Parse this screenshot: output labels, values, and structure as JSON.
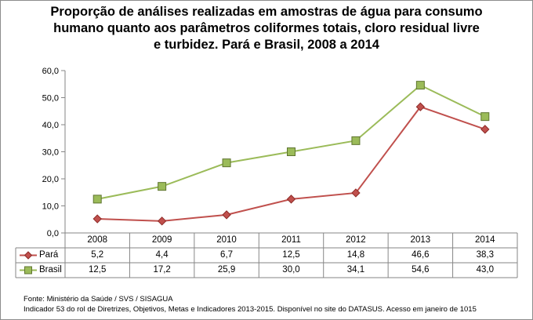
{
  "chart_data": {
    "type": "line",
    "title": "Proporção de análises realizadas em amostras de água para consumo humano quanto aos parâmetros coliformes totais, cloro residual livre e turbidez. Pará e Brasil, 2008 a 2014",
    "title_lines": [
      "Proporção de análises realizadas em amostras de água para consumo",
      "humano quanto aos parâmetros coliformes totais, cloro residual livre",
      "e turbidez. Pará e Brasil, 2008 a 2014"
    ],
    "categories": [
      "2008",
      "2009",
      "2010",
      "2011",
      "2012",
      "2013",
      "2014"
    ],
    "series": [
      {
        "name": "Pará",
        "values": [
          5.2,
          4.4,
          6.7,
          12.5,
          14.8,
          46.6,
          38.3
        ],
        "labels": [
          "5,2",
          "4,4",
          "6,7",
          "12,5",
          "14,8",
          "46,6",
          "38,3"
        ],
        "color": "#c0504d",
        "marker": "diamond"
      },
      {
        "name": "Brasil",
        "values": [
          12.5,
          17.2,
          25.9,
          30.0,
          34.1,
          54.6,
          43.0
        ],
        "labels": [
          "12,5",
          "17,2",
          "25,9",
          "30,0",
          "34,1",
          "54,6",
          "43,0"
        ],
        "color": "#9bbb59",
        "marker": "square"
      }
    ],
    "ylim": [
      0,
      60
    ],
    "yticks": [
      0,
      10,
      20,
      30,
      40,
      50,
      60
    ],
    "ytick_labels": [
      "0,0",
      "10,0",
      "20,0",
      "30,0",
      "40,0",
      "50,0",
      "60,0"
    ],
    "grid": false,
    "legend": "data-table",
    "xlabel": "",
    "ylabel": ""
  },
  "source": {
    "line1": "Fonte: Ministério da Saúde / SVS / SISAGUA",
    "line2": "Indicador 53 do rol de Diretrizes, Objetivos, Metas e Indicadores 2013-2015. Disponível no site do DATASUS. Acesso em janeiro de 1015"
  }
}
